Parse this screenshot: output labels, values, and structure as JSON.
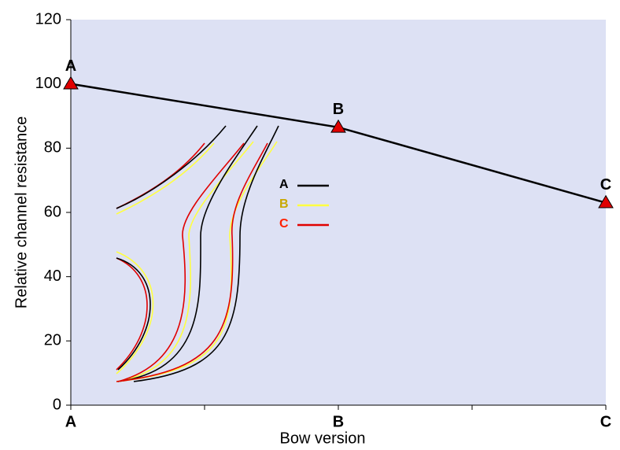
{
  "chart_data": {
    "type": "line",
    "x_label": "Bow version",
    "y_label": "Relative channel resistance",
    "categories": [
      "A",
      "B",
      "C"
    ],
    "values": [
      100,
      86.5,
      63
    ],
    "point_labels": [
      "A",
      "B",
      "C"
    ],
    "color": "#000000",
    "marker_color": "#e00000",
    "ylim": [
      0,
      120
    ],
    "yticks": [
      0,
      20,
      40,
      60,
      80,
      100,
      120
    ],
    "background": "#dde1f4",
    "inset_legend": [
      {
        "name": "A",
        "color": "#000000",
        "text_color": "#000000"
      },
      {
        "name": "B",
        "color": "#ffff40",
        "text_color": "#c8a800"
      },
      {
        "name": "C",
        "color": "#e00000",
        "text_color": "#ff2000"
      }
    ]
  }
}
